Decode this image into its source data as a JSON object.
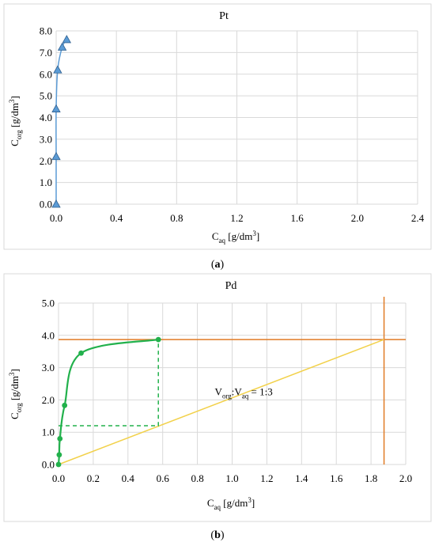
{
  "chart_data": [
    {
      "panel": "a",
      "type": "scatter",
      "title": "Pt",
      "caption": "a",
      "ylabel": {
        "main": "C",
        "sub": "org",
        "unit": " [g/dm",
        "sup": "3",
        "close": "]"
      },
      "xlabel": {
        "main": "C",
        "sub": "aq",
        "unit": " [g/dm",
        "sup": "3",
        "close": "]"
      },
      "xlim": [
        0,
        2.4
      ],
      "ylim": [
        0,
        8
      ],
      "xticks": [
        "0.0",
        "0.4",
        "0.8",
        "1.2",
        "1.6",
        "2.0",
        "2.4"
      ],
      "yticks": [
        "0.0",
        "1.0",
        "2.0",
        "3.0",
        "4.0",
        "5.0",
        "6.0",
        "7.0",
        "8.0"
      ],
      "grid": true,
      "series": [
        {
          "marker": "triangle",
          "color": "#5b9bd5",
          "curve": "smooth",
          "x": [
            0.0,
            0.0,
            0.0,
            0.01,
            0.04,
            0.07
          ],
          "y": [
            0.0,
            2.2,
            4.4,
            6.2,
            7.25,
            7.6
          ]
        }
      ]
    },
    {
      "panel": "b",
      "type": "scatter",
      "title": "Pd",
      "caption": "b",
      "ylabel": {
        "main": "C",
        "sub": "org",
        "unit": " [g/dm",
        "sup": "3",
        "close": "]"
      },
      "xlabel": {
        "main": "C",
        "sub": "aq",
        "unit": " [g/dm",
        "sup": "3",
        "close": "]"
      },
      "xlim": [
        0,
        2.0
      ],
      "ylim": [
        0,
        5.0
      ],
      "xticks": [
        "0.0",
        "0.2",
        "0.4",
        "0.6",
        "0.8",
        "1.0",
        "1.2",
        "1.4",
        "1.6",
        "1.8",
        "2.0"
      ],
      "yticks": [
        "0.0",
        "1.0",
        "2.0",
        "3.0",
        "4.0",
        "5.0"
      ],
      "grid": true,
      "annotation": {
        "main1": "V",
        "sub1": "org",
        "mid": ":V",
        "sub2": "aq",
        "rest": " = 1:3",
        "x": 0.9,
        "y": 2.15
      },
      "series": [
        {
          "marker": "circle",
          "color": "#22b14c",
          "curve": "smooth",
          "x": [
            0.0,
            0.004,
            0.008,
            0.035,
            0.13,
            0.575
          ],
          "y": [
            0.0,
            0.3,
            0.8,
            1.83,
            3.45,
            3.87
          ]
        }
      ],
      "construction": {
        "horizontal_line_y": 3.87,
        "vertical_line_x": 1.875,
        "operating_line": {
          "x": [
            0,
            1.875
          ],
          "y": [
            0,
            3.87
          ]
        },
        "step_dashed": {
          "x": [
            0.0,
            0.575,
            0.575
          ],
          "y": [
            1.2,
            1.2,
            3.87
          ]
        },
        "line_color": "#e07b25",
        "operating_color": "#f2d14a",
        "step_color": "#22b14c"
      }
    }
  ]
}
